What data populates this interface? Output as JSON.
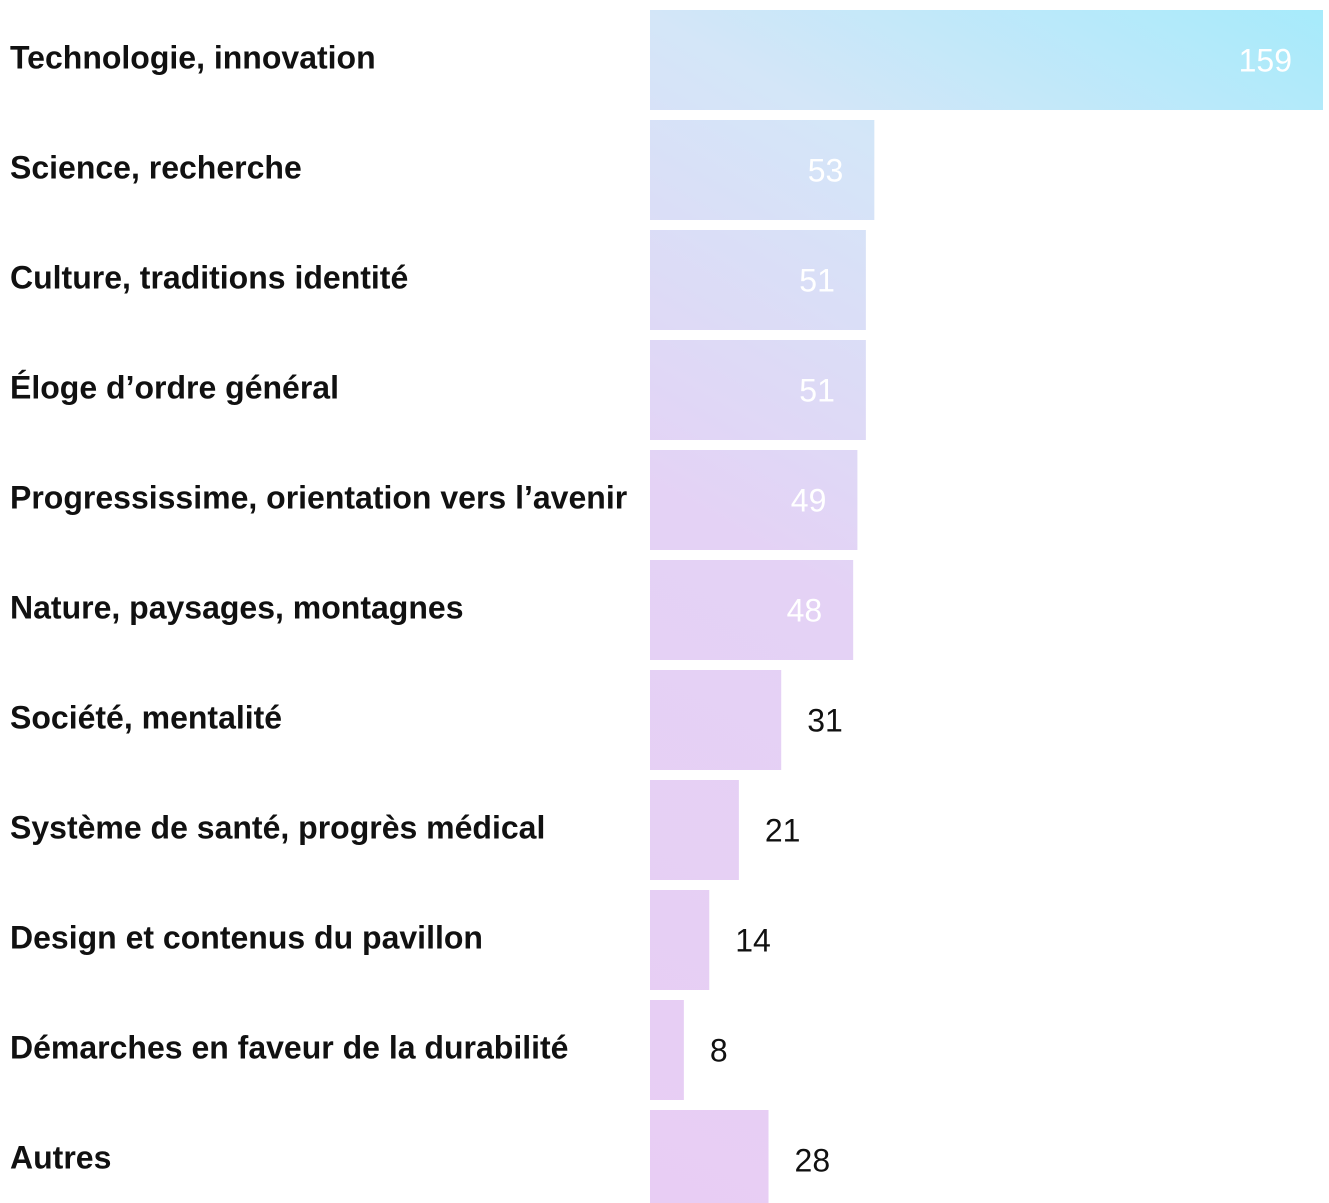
{
  "chart_data": {
    "type": "bar",
    "orientation": "horizontal",
    "categories": [
      "Technologie, innovation",
      "Science, recherche",
      "Culture, traditions identité",
      "Éloge d’ordre général",
      "Progressissime, orientation vers l’avenir",
      "Nature, paysages, montagnes",
      "Société, mentalité",
      "Système de santé, progrès médical",
      "Design et contenus du pavillon",
      "Démarches en faveur de la durabilité",
      "Autres"
    ],
    "values": [
      159,
      53,
      51,
      51,
      49,
      48,
      31,
      21,
      14,
      8,
      28
    ]
  }
}
